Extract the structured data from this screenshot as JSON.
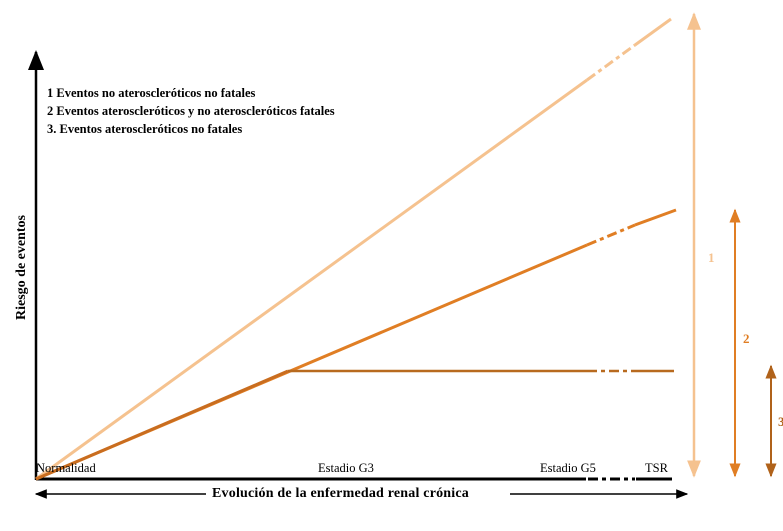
{
  "legend": {
    "line1": "1 Eventos no ateroscleróticos no fatales",
    "line2": "2 Eventos ateroscleróticos y no ateroscleróticos fatales",
    "line3": "3. Eventos ateroscleróticos no fatales"
  },
  "axes": {
    "y_title": "Riesgo de eventos",
    "x_title": "Evolución de la enfermedad renal crónica",
    "x_ticks": {
      "normalidad": "Normalidad",
      "g3": "Estadio G3",
      "g5": "Estadio G5",
      "tsr": "TSR"
    }
  },
  "markers": {
    "m1": "1",
    "m2": "2",
    "m3": "3"
  },
  "colors": {
    "line1": "#f5c28f",
    "line2": "#e07e24",
    "line3": "#b86a1f",
    "arrow1": "#f5c28f",
    "arrow2": "#e07e24",
    "arrow3": "#b0621a",
    "axis": "#000000"
  }
}
